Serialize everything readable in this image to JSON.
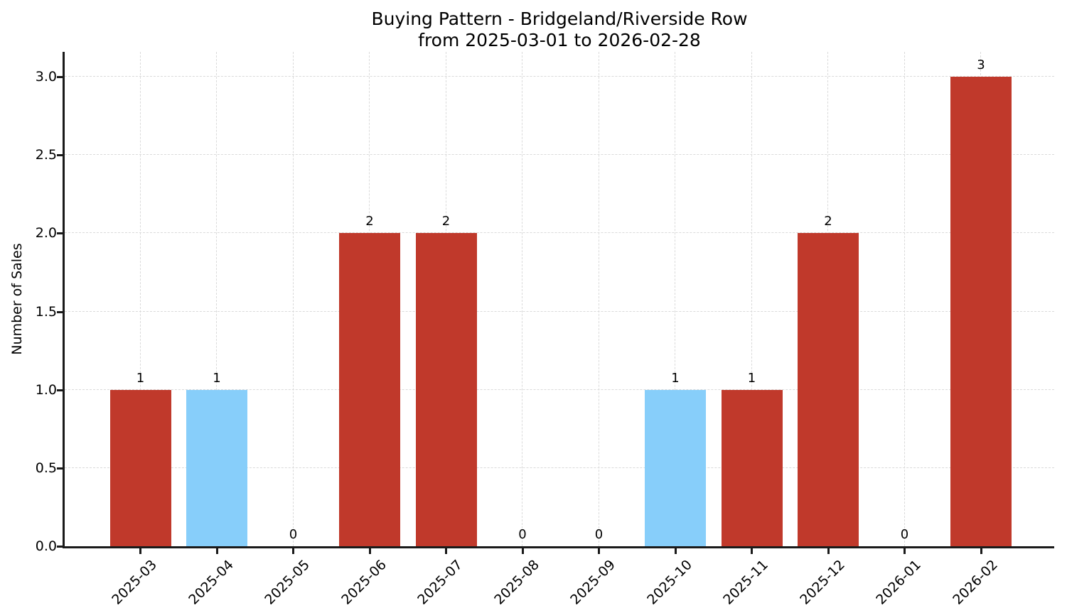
{
  "chart_data": {
    "type": "bar",
    "title": "Buying Pattern - Bridgeland/Riverside Row",
    "subtitle": "from 2025-03-01 to 2026-02-28",
    "xlabel": "",
    "ylabel": "Number of Sales",
    "categories": [
      "2025-03",
      "2025-04",
      "2025-05",
      "2025-06",
      "2025-07",
      "2025-08",
      "2025-09",
      "2025-10",
      "2025-11",
      "2025-12",
      "2026-01",
      "2026-02"
    ],
    "values": [
      1,
      1,
      0,
      2,
      2,
      0,
      0,
      1,
      1,
      2,
      0,
      3
    ],
    "bar_value_labels": [
      "1",
      "1",
      "0",
      "2",
      "2",
      "0",
      "0",
      "1",
      "1",
      "2",
      "0",
      "3"
    ],
    "bar_colors": [
      "#c0392b",
      "#87CEFA",
      "#c0392b",
      "#c0392b",
      "#c0392b",
      "#c0392b",
      "#c0392b",
      "#87CEFA",
      "#c0392b",
      "#c0392b",
      "#c0392b",
      "#c0392b"
    ],
    "palette": {
      "red": "#c0392b",
      "light_blue": "#87CEFA"
    },
    "ytick_labels": [
      "0.0",
      "0.5",
      "1.0",
      "1.5",
      "2.0",
      "2.5",
      "3.0"
    ],
    "ytick_values": [
      0,
      0.5,
      1,
      1.5,
      2,
      2.5,
      3
    ],
    "ylim": [
      0,
      3.16
    ],
    "xlim": [
      -1,
      12
    ],
    "grid": true,
    "grid_style": "dashed",
    "legend": null
  }
}
